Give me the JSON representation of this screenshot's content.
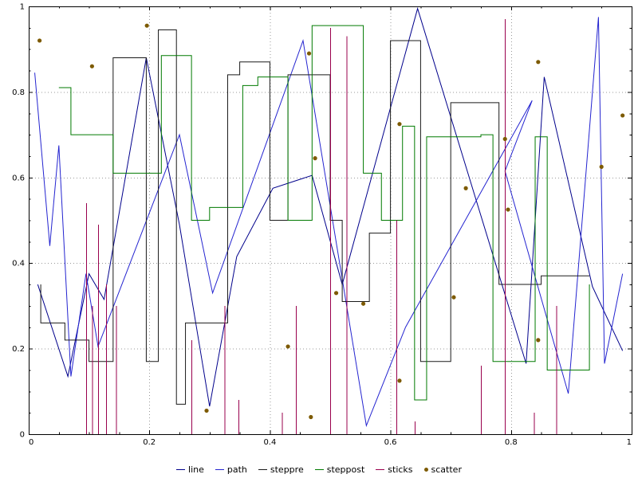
{
  "window": {
    "background": "#ffffff"
  },
  "chart_data": {
    "type": "multi",
    "title": "",
    "xlabel": "",
    "ylabel": "",
    "xlim": [
      0,
      1
    ],
    "ylim": [
      0,
      1
    ],
    "grid": "dotted",
    "grid_color": "#999999",
    "frame_color": "#000000",
    "tick_label_color": "#000000",
    "legend_position": "bottom",
    "xticks": {
      "values": [
        0,
        0.2,
        0.4,
        0.6,
        0.8,
        1
      ],
      "labels": [
        "0",
        "0.2",
        "0.4",
        "0.6",
        "0.8",
        "1"
      ]
    },
    "yticks": {
      "values": [
        0,
        0.2,
        0.4,
        0.6,
        0.8,
        1
      ],
      "labels": [
        "0",
        "0.2",
        "0.4",
        "0.6",
        "0.8",
        "1"
      ]
    },
    "minor_tick_step": 0.05,
    "series": [
      {
        "name": "line",
        "type": "line",
        "color": "#00008b",
        "points": [
          [
            0.015,
            0.35
          ],
          [
            0.065,
            0.135
          ],
          [
            0.1,
            0.375
          ],
          [
            0.125,
            0.315
          ],
          [
            0.195,
            0.88
          ],
          [
            0.25,
            0.49
          ],
          [
            0.3,
            0.065
          ],
          [
            0.345,
            0.415
          ],
          [
            0.405,
            0.575
          ],
          [
            0.47,
            0.605
          ],
          [
            0.52,
            0.35
          ],
          [
            0.645,
            0.995
          ],
          [
            0.825,
            0.165
          ],
          [
            0.855,
            0.835
          ],
          [
            0.935,
            0.345
          ],
          [
            0.985,
            0.195
          ]
        ]
      },
      {
        "name": "path",
        "type": "path",
        "color": "#2424d0",
        "points": [
          [
            0.01,
            0.845
          ],
          [
            0.035,
            0.44
          ],
          [
            0.05,
            0.675
          ],
          [
            0.07,
            0.135
          ],
          [
            0.095,
            0.375
          ],
          [
            0.115,
            0.205
          ],
          [
            0.25,
            0.7
          ],
          [
            0.305,
            0.33
          ],
          [
            0.455,
            0.92
          ],
          [
            0.56,
            0.02
          ],
          [
            0.625,
            0.25
          ],
          [
            0.835,
            0.78
          ],
          [
            0.79,
            0.615
          ],
          [
            0.895,
            0.095
          ],
          [
            0.945,
            0.975
          ],
          [
            0.955,
            0.165
          ],
          [
            0.985,
            0.375
          ]
        ]
      },
      {
        "name": "steppre",
        "type": "steppre",
        "color": "#1a1a1a",
        "points": [
          [
            0.02,
            0.35
          ],
          [
            0.06,
            0.26
          ],
          [
            0.1,
            0.22
          ],
          [
            0.14,
            0.17
          ],
          [
            0.195,
            0.88
          ],
          [
            0.215,
            0.17
          ],
          [
            0.245,
            0.945
          ],
          [
            0.26,
            0.07
          ],
          [
            0.33,
            0.26
          ],
          [
            0.35,
            0.84
          ],
          [
            0.4,
            0.87
          ],
          [
            0.43,
            0.5
          ],
          [
            0.5,
            0.84
          ],
          [
            0.52,
            0.5
          ],
          [
            0.565,
            0.31
          ],
          [
            0.6,
            0.47
          ],
          [
            0.65,
            0.92
          ],
          [
            0.7,
            0.17
          ],
          [
            0.78,
            0.775
          ],
          [
            0.85,
            0.35
          ],
          [
            0.93,
            0.37
          ]
        ]
      },
      {
        "name": "steppost",
        "type": "steppost",
        "color": "#007a00",
        "points": [
          [
            0.05,
            0.81
          ],
          [
            0.07,
            0.7
          ],
          [
            0.14,
            0.61
          ],
          [
            0.22,
            0.885
          ],
          [
            0.27,
            0.5
          ],
          [
            0.3,
            0.53
          ],
          [
            0.355,
            0.815
          ],
          [
            0.38,
            0.835
          ],
          [
            0.43,
            0.5
          ],
          [
            0.47,
            0.955
          ],
          [
            0.555,
            0.61
          ],
          [
            0.585,
            0.5
          ],
          [
            0.62,
            0.72
          ],
          [
            0.64,
            0.08
          ],
          [
            0.66,
            0.695
          ],
          [
            0.75,
            0.7
          ],
          [
            0.77,
            0.17
          ],
          [
            0.84,
            0.695
          ],
          [
            0.86,
            0.15
          ],
          [
            0.93,
            0.35
          ]
        ]
      },
      {
        "name": "sticks",
        "type": "sticks",
        "color": "#99004d",
        "points": [
          [
            0.095,
            0.54
          ],
          [
            0.105,
            0.3
          ],
          [
            0.115,
            0.49
          ],
          [
            0.128,
            0.35
          ],
          [
            0.145,
            0.3
          ],
          [
            0.27,
            0.22
          ],
          [
            0.325,
            0.3
          ],
          [
            0.348,
            0.08
          ],
          [
            0.42,
            0.05
          ],
          [
            0.443,
            0.3
          ],
          [
            0.5,
            0.95
          ],
          [
            0.527,
            0.93
          ],
          [
            0.61,
            0.5
          ],
          [
            0.64,
            0.03
          ],
          [
            0.75,
            0.16
          ],
          [
            0.79,
            0.97
          ],
          [
            0.838,
            0.05
          ],
          [
            0.875,
            0.3
          ]
        ]
      },
      {
        "name": "scatter",
        "type": "scatter",
        "color": "#7d5a00",
        "points": [
          [
            0.018,
            0.92
          ],
          [
            0.105,
            0.86
          ],
          [
            0.196,
            0.955
          ],
          [
            0.295,
            0.055
          ],
          [
            0.43,
            0.205
          ],
          [
            0.465,
            0.89
          ],
          [
            0.468,
            0.04
          ],
          [
            0.475,
            0.645
          ],
          [
            0.51,
            0.33
          ],
          [
            0.555,
            0.305
          ],
          [
            0.615,
            0.725
          ],
          [
            0.615,
            0.125
          ],
          [
            0.705,
            0.32
          ],
          [
            0.725,
            0.575
          ],
          [
            0.79,
            0.69
          ],
          [
            0.795,
            0.525
          ],
          [
            0.845,
            0.87
          ],
          [
            0.845,
            0.22
          ],
          [
            0.95,
            0.625
          ],
          [
            0.985,
            0.745
          ]
        ]
      }
    ]
  }
}
